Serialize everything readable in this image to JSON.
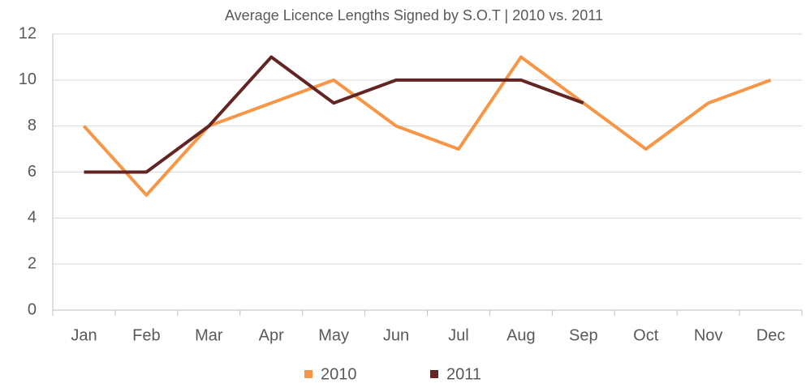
{
  "chart_data": {
    "type": "line",
    "title": "Average Licence Lengths Signed by S.O.T | 2010 vs. 2011",
    "categories": [
      "Jan",
      "Feb",
      "Mar",
      "Apr",
      "May",
      "Jun",
      "Jul",
      "Aug",
      "Sep",
      "Oct",
      "Nov",
      "Dec"
    ],
    "series": [
      {
        "name": "2010",
        "color": "#f79646",
        "values": [
          8,
          5,
          8,
          9,
          10,
          8,
          7,
          11,
          9,
          7,
          9,
          10
        ]
      },
      {
        "name": "2011",
        "color": "#632523",
        "values": [
          6,
          6,
          8,
          11,
          9,
          10,
          10,
          10,
          9,
          null,
          null,
          null
        ]
      }
    ],
    "ylim": [
      0,
      12
    ],
    "yticks": [
      0,
      2,
      4,
      6,
      8,
      10,
      12
    ],
    "grid": true,
    "legend": "bottom"
  }
}
